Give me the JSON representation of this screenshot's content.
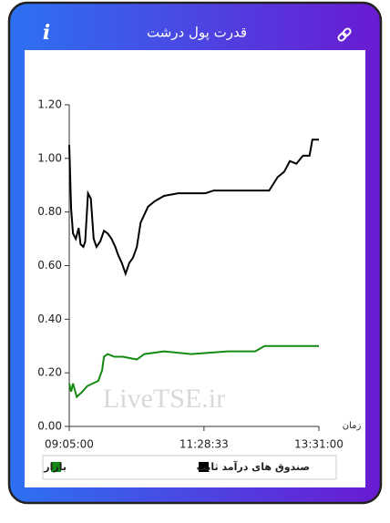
{
  "header": {
    "title": "قدرت پول درشت",
    "info_icon": "i"
  },
  "chart_data": {
    "type": "line",
    "watermark": "LiveTSE.ir",
    "xlabel": "زمان",
    "xlim": [
      "09:05:00",
      "13:31:00"
    ],
    "xticks": [
      "09:05:00",
      "11:28:33",
      "13:31:00"
    ],
    "ylim": [
      0,
      1.2
    ],
    "yticks": [
      {
        "value": 0,
        "label": "0.00"
      },
      {
        "value": 0.2,
        "label": "0.20"
      },
      {
        "value": 0.4,
        "label": "0.40"
      },
      {
        "value": 0.6,
        "label": "0.60"
      },
      {
        "value": 0.8,
        "label": "0.80"
      },
      {
        "value": 1,
        "label": "1.00"
      },
      {
        "value": 1.2,
        "label": "1.20"
      }
    ],
    "series": [
      {
        "name": "صندوق های درآمد ثابت",
        "color": "#000000",
        "x": [
          "09:05:00",
          "09:07:00",
          "09:09:00",
          "09:12:00",
          "09:15:00",
          "09:17:00",
          "09:20:00",
          "09:22:00",
          "09:25:00",
          "09:28:00",
          "09:31:00",
          "09:34:00",
          "09:38:00",
          "09:42:00",
          "09:46:00",
          "09:50:00",
          "09:54:00",
          "09:57:00",
          "10:01:00",
          "10:05:00",
          "10:09:00",
          "10:13:00",
          "10:17:00",
          "10:21:00",
          "10:25:00",
          "10:29:00",
          "10:36:00",
          "10:46:00",
          "11:01:00",
          "11:15:00",
          "11:30:00",
          "11:39:00",
          "11:54:00",
          "12:08:00",
          "12:23:00",
          "12:38:00",
          "12:47:00",
          "12:54:00",
          "13:00:00",
          "13:07:00",
          "13:14:00",
          "13:21:00",
          "13:24:00",
          "13:31:00"
        ],
        "values": [
          1.05,
          0.81,
          0.72,
          0.7,
          0.74,
          0.68,
          0.67,
          0.69,
          0.87,
          0.85,
          0.7,
          0.67,
          0.69,
          0.73,
          0.72,
          0.7,
          0.67,
          0.64,
          0.61,
          0.57,
          0.61,
          0.63,
          0.67,
          0.76,
          0.79,
          0.82,
          0.84,
          0.86,
          0.87,
          0.87,
          0.87,
          0.88,
          0.88,
          0.88,
          0.88,
          0.88,
          0.93,
          0.95,
          0.99,
          0.98,
          1.01,
          1.01,
          1.07,
          1.07
        ]
      },
      {
        "name": "بازار",
        "color": "#138a13",
        "x": [
          "09:05:00",
          "09:07:00",
          "09:09:00",
          "09:13:00",
          "09:19:00",
          "09:24:00",
          "09:30:00",
          "09:36:00",
          "09:40:00",
          "09:42:00",
          "09:46:00",
          "09:53:00",
          "10:02:00",
          "10:17:00",
          "10:25:00",
          "10:46:00",
          "11:15:00",
          "11:54:00",
          "12:23:00",
          "12:33:00",
          "13:31:00"
        ],
        "values": [
          0.16,
          0.13,
          0.16,
          0.11,
          0.13,
          0.15,
          0.16,
          0.17,
          0.21,
          0.26,
          0.27,
          0.26,
          0.26,
          0.25,
          0.27,
          0.28,
          0.27,
          0.28,
          0.28,
          0.3,
          0.3
        ]
      }
    ]
  }
}
